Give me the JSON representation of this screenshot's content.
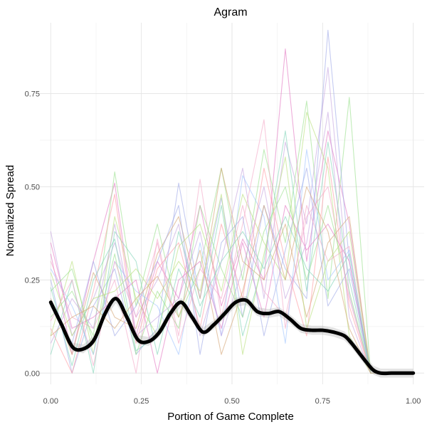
{
  "chart_data": {
    "type": "line",
    "title": "Agram",
    "xlabel": "Portion of Game Complete",
    "ylabel": "Normalized Spread",
    "xlim": [
      -0.03,
      1.03
    ],
    "ylim": [
      -0.03,
      0.94
    ],
    "x_ticks": [
      0.0,
      0.25,
      0.5,
      0.75,
      1.0
    ],
    "x_tick_labels": [
      "0.00",
      "0.25",
      "0.50",
      "0.75",
      "1.00"
    ],
    "y_ticks": [
      0.0,
      0.25,
      0.5,
      0.75
    ],
    "y_tick_labels": [
      "0.00",
      "0.25",
      "0.50",
      "0.75"
    ],
    "grid": true,
    "legend": "none",
    "palette": [
      "#e377c2",
      "#98df8a",
      "#9fa8e8",
      "#c5a3e0",
      "#b8e07a",
      "#f4a6c6",
      "#7fd3b8",
      "#d4a373",
      "#a0c4ff",
      "#ff9aa2"
    ],
    "smooth_color": "#000000",
    "smooth_band_color": "#b0b0b0",
    "smooth": {
      "x": [
        0.0,
        0.03,
        0.06,
        0.09,
        0.12,
        0.15,
        0.18,
        0.21,
        0.24,
        0.27,
        0.3,
        0.33,
        0.36,
        0.39,
        0.42,
        0.45,
        0.48,
        0.51,
        0.54,
        0.57,
        0.6,
        0.63,
        0.66,
        0.69,
        0.72,
        0.75,
        0.78,
        0.81,
        0.83,
        0.85,
        0.87,
        0.89,
        0.91,
        0.94,
        0.97,
        1.0
      ],
      "y": [
        0.19,
        0.13,
        0.07,
        0.065,
        0.09,
        0.16,
        0.2,
        0.15,
        0.09,
        0.085,
        0.11,
        0.16,
        0.19,
        0.15,
        0.11,
        0.13,
        0.16,
        0.19,
        0.195,
        0.165,
        0.16,
        0.165,
        0.145,
        0.12,
        0.115,
        0.115,
        0.11,
        0.1,
        0.08,
        0.055,
        0.03,
        0.008,
        0.0,
        0.0,
        0.0,
        0.0
      ]
    },
    "series_x": [
      0.0,
      0.0588,
      0.1176,
      0.1765,
      0.2353,
      0.2941,
      0.3529,
      0.4118,
      0.4706,
      0.5294,
      0.5882,
      0.6471,
      0.7059,
      0.7647,
      0.8235,
      0.8824,
      0.9412,
      1.0
    ],
    "series": [
      {
        "values": [
          0.32,
          0.05,
          0.3,
          0.51,
          0.1,
          0.3,
          0.2,
          0.45,
          0.18,
          0.36,
          0.25,
          0.87,
          0.3,
          0.65,
          0.4,
          0.0,
          0.0,
          0.0
        ]
      },
      {
        "values": [
          0.15,
          0.22,
          0.1,
          0.54,
          0.18,
          0.4,
          0.15,
          0.28,
          0.55,
          0.25,
          0.6,
          0.35,
          0.73,
          0.2,
          0.74,
          0.0,
          0.0,
          0.0
        ]
      },
      {
        "values": [
          0.25,
          0.0,
          0.18,
          0.28,
          0.05,
          0.12,
          0.51,
          0.2,
          0.47,
          0.15,
          0.45,
          0.28,
          0.2,
          0.92,
          0.3,
          0.0,
          0.0,
          0.0
        ]
      },
      {
        "values": [
          0.38,
          0.1,
          0.2,
          0.35,
          0.15,
          0.25,
          0.4,
          0.1,
          0.3,
          0.55,
          0.2,
          0.62,
          0.4,
          0.82,
          0.21,
          0.0,
          0.0,
          0.0
        ]
      },
      {
        "values": [
          0.1,
          0.3,
          0.05,
          0.42,
          0.2,
          0.1,
          0.34,
          0.4,
          0.22,
          0.48,
          0.35,
          0.25,
          0.7,
          0.55,
          0.1,
          0.0,
          0.0,
          0.0
        ]
      },
      {
        "values": [
          0.3,
          0.15,
          0.12,
          0.25,
          0.0,
          0.36,
          0.1,
          0.52,
          0.15,
          0.4,
          0.68,
          0.12,
          0.45,
          0.3,
          0.34,
          0.0,
          0.0,
          0.0
        ]
      },
      {
        "values": [
          0.05,
          0.25,
          0.0,
          0.38,
          0.3,
          0.05,
          0.28,
          0.15,
          0.45,
          0.1,
          0.3,
          0.65,
          0.22,
          0.62,
          0.25,
          0.0,
          0.0,
          0.0
        ]
      },
      {
        "values": [
          0.2,
          0.05,
          0.27,
          0.15,
          0.12,
          0.32,
          0.42,
          0.2,
          0.55,
          0.3,
          0.25,
          0.4,
          0.15,
          0.35,
          0.42,
          0.0,
          0.0,
          0.0
        ]
      },
      {
        "values": [
          0.28,
          0.18,
          0.05,
          0.3,
          0.22,
          0.18,
          0.05,
          0.35,
          0.1,
          0.53,
          0.42,
          0.08,
          0.6,
          0.25,
          0.33,
          0.0,
          0.0,
          0.0
        ]
      },
      {
        "values": [
          0.12,
          0.0,
          0.22,
          0.48,
          0.08,
          0.28,
          0.35,
          0.12,
          0.4,
          0.2,
          0.55,
          0.3,
          0.1,
          0.58,
          0.18,
          0.0,
          0.0,
          0.0
        ]
      },
      {
        "values": [
          0.35,
          0.12,
          0.15,
          0.2,
          0.25,
          0.0,
          0.25,
          0.3,
          0.12,
          0.35,
          0.15,
          0.45,
          0.33,
          0.4,
          0.3,
          0.0,
          0.0,
          0.0
        ]
      },
      {
        "values": [
          0.22,
          0.28,
          0.08,
          0.32,
          0.05,
          0.22,
          0.12,
          0.45,
          0.28,
          0.15,
          0.38,
          0.5,
          0.25,
          0.45,
          0.22,
          0.0,
          0.0,
          0.0
        ]
      },
      {
        "values": [
          0.18,
          0.08,
          0.3,
          0.1,
          0.18,
          0.3,
          0.45,
          0.05,
          0.35,
          0.42,
          0.1,
          0.33,
          0.55,
          0.18,
          0.28,
          0.0,
          0.0,
          0.0
        ]
      },
      {
        "values": [
          0.08,
          0.2,
          0.12,
          0.4,
          0.1,
          0.15,
          0.2,
          0.38,
          0.1,
          0.28,
          0.5,
          0.2,
          0.35,
          0.7,
          0.15,
          0.0,
          0.0,
          0.0
        ]
      },
      {
        "values": [
          0.27,
          0.1,
          0.2,
          0.22,
          0.28,
          0.2,
          0.3,
          0.22,
          0.48,
          0.05,
          0.32,
          0.58,
          0.12,
          0.3,
          0.38,
          0.0,
          0.0,
          0.0
        ]
      },
      {
        "values": [
          0.14,
          0.25,
          0.02,
          0.3,
          0.15,
          0.35,
          0.08,
          0.28,
          0.2,
          0.45,
          0.22,
          0.15,
          0.42,
          0.5,
          0.2,
          0.0,
          0.0,
          0.0
        ]
      },
      {
        "values": [
          0.23,
          0.02,
          0.25,
          0.36,
          0.06,
          0.1,
          0.38,
          0.18,
          0.3,
          0.38,
          0.28,
          0.42,
          0.28,
          0.22,
          0.32,
          0.0,
          0.0,
          0.0
        ]
      },
      {
        "values": [
          0.1,
          0.15,
          0.18,
          0.12,
          0.2,
          0.26,
          0.15,
          0.33,
          0.05,
          0.22,
          0.45,
          0.25,
          0.5,
          0.38,
          0.12,
          0.0,
          0.0,
          0.0
        ]
      }
    ]
  }
}
